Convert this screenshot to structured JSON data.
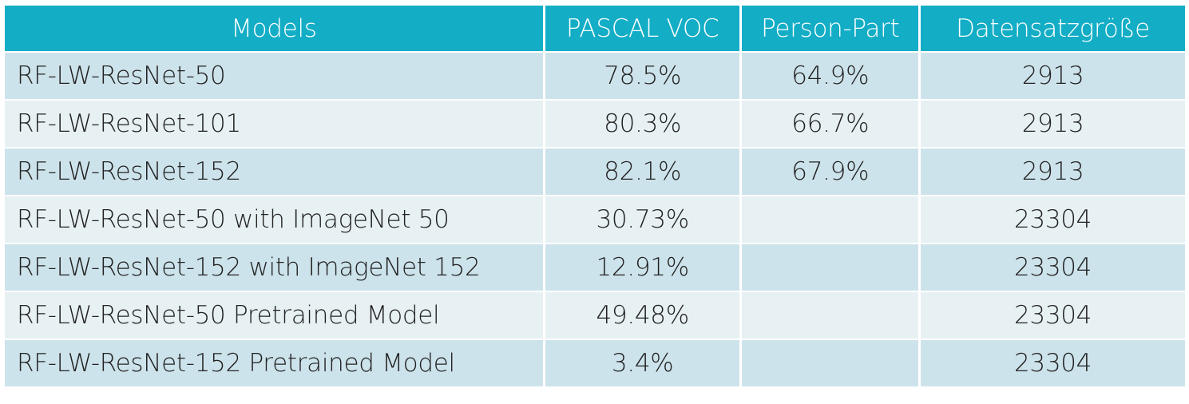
{
  "table": {
    "headers": [
      "Models",
      "PASCAL VOC",
      "Person-Part",
      "Datensatzgröße"
    ],
    "rows": [
      [
        "RF-LW-ResNet-50",
        "78.5%",
        "64.9%",
        "2913"
      ],
      [
        "RF-LW-ResNet-101",
        "80.3%",
        "66.7%",
        "2913"
      ],
      [
        "RF-LW-ResNet-152",
        "82.1%",
        "67.9%",
        "2913"
      ],
      [
        "RF-LW-ResNet-50 with ImageNet 50",
        "30.73%",
        "",
        "23304"
      ],
      [
        "RF-LW-ResNet-152 with ImageNet 152",
        "12.91%",
        "",
        "23304"
      ],
      [
        "RF-LW-ResNet-50 Pretrained Model",
        "49.48%",
        "",
        "23304"
      ],
      [
        "RF-LW-ResNet-152 Pretrained Model",
        "3.4%",
        "",
        "23304"
      ]
    ]
  },
  "colors": {
    "header_bg": "#13adc6",
    "header_text": "#ffffff",
    "row_odd_bg": "#cde3eb",
    "row_even_bg": "#e7f1f4",
    "cell_text": "#222222"
  }
}
